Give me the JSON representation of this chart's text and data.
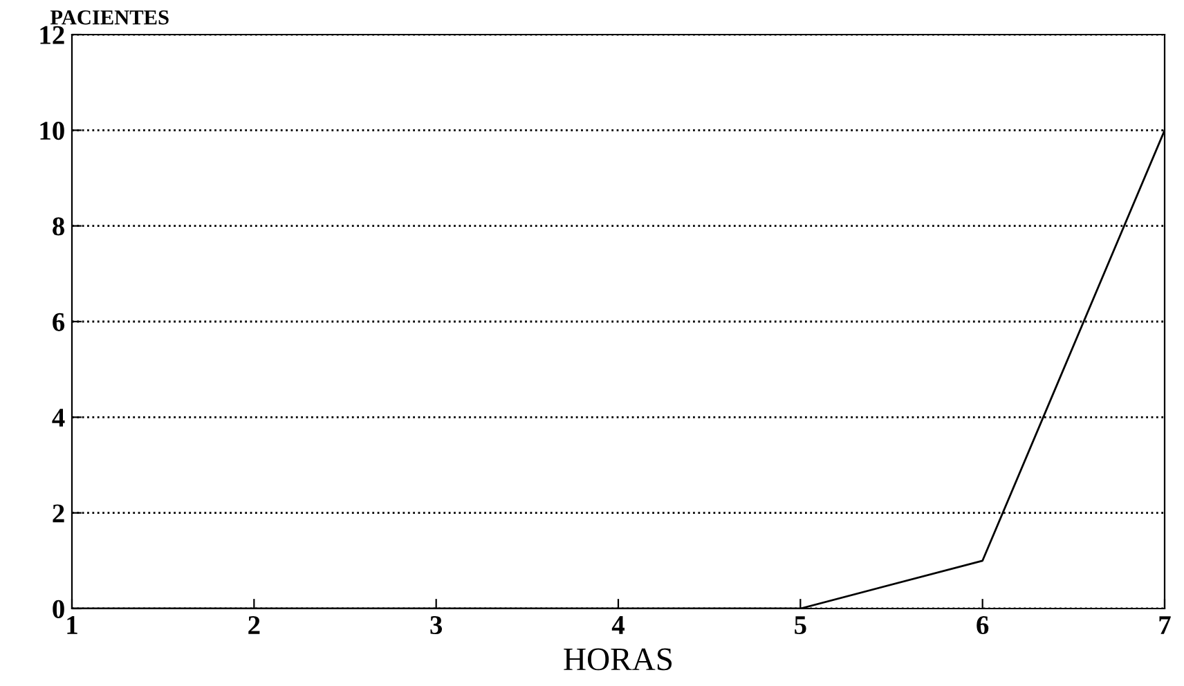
{
  "chart_data": {
    "type": "line",
    "xlabel": "HORAS",
    "ylabel": "PACIENTES",
    "x": [
      1,
      2,
      3,
      4,
      5,
      6,
      7
    ],
    "series": [
      {
        "color": "#000000",
        "values": [
          0,
          0,
          0,
          0,
          0,
          1,
          10
        ]
      }
    ],
    "xlim": [
      1,
      7
    ],
    "xticks": [
      1,
      2,
      3,
      4,
      5,
      6,
      7
    ],
    "ylim": [
      0,
      12
    ],
    "yticks": [
      0,
      2,
      4,
      6,
      8,
      10,
      12
    ],
    "grid": "y",
    "line_style": "solid"
  }
}
